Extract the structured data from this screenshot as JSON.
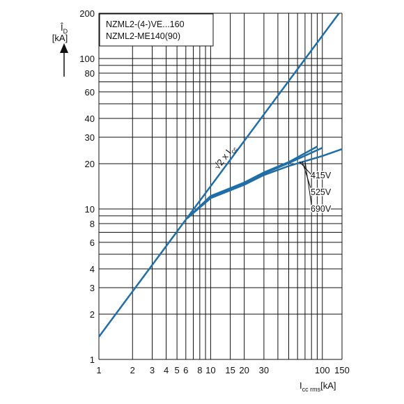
{
  "chart_data": {
    "type": "line",
    "legend_box": [
      "NZML2-(4-)VE...160",
      "NZML2-ME140(90)"
    ],
    "ylabel": {
      "main": "Î",
      "sub": "D",
      "unit": "[kA]"
    },
    "xlabel": {
      "main": "I",
      "sub": "cc rms",
      "unit": "[kA]"
    },
    "log_x": true,
    "log_y": true,
    "grid": true,
    "xlim": [
      1,
      150
    ],
    "ylim": [
      1,
      200
    ],
    "xticks": [
      1,
      2,
      3,
      4,
      5,
      6,
      8,
      10,
      15,
      20,
      30,
      100,
      150
    ],
    "xminor": [
      7,
      9,
      40,
      50,
      60,
      70,
      80,
      90
    ],
    "yticks": [
      1,
      2,
      3,
      4,
      6,
      8,
      10,
      20,
      30,
      40,
      60,
      80,
      100,
      200
    ],
    "yminor": [
      5,
      7,
      9,
      50,
      70,
      90
    ],
    "color": "#1f6ea8",
    "series": [
      {
        "name": "√2 x I",
        "name_sub": "cc",
        "x": [
          1,
          141
        ],
        "values": [
          1.414,
          200
        ]
      },
      {
        "name": "415V",
        "x": [
          6.2,
          10,
          20,
          30,
          50,
          90
        ],
        "values": [
          8.7,
          12.2,
          15,
          17.5,
          20.5,
          26
        ]
      },
      {
        "name": "525V",
        "x": [
          6.2,
          10,
          20,
          30,
          50,
          100
        ],
        "values": [
          8.7,
          12,
          14.8,
          17.2,
          20.2,
          25.5
        ]
      },
      {
        "name": "690V",
        "x": [
          6.2,
          10,
          20,
          30,
          50,
          100,
          150
        ],
        "values": [
          8.7,
          11.8,
          14.5,
          16.8,
          19.3,
          22.5,
          25
        ]
      }
    ]
  }
}
